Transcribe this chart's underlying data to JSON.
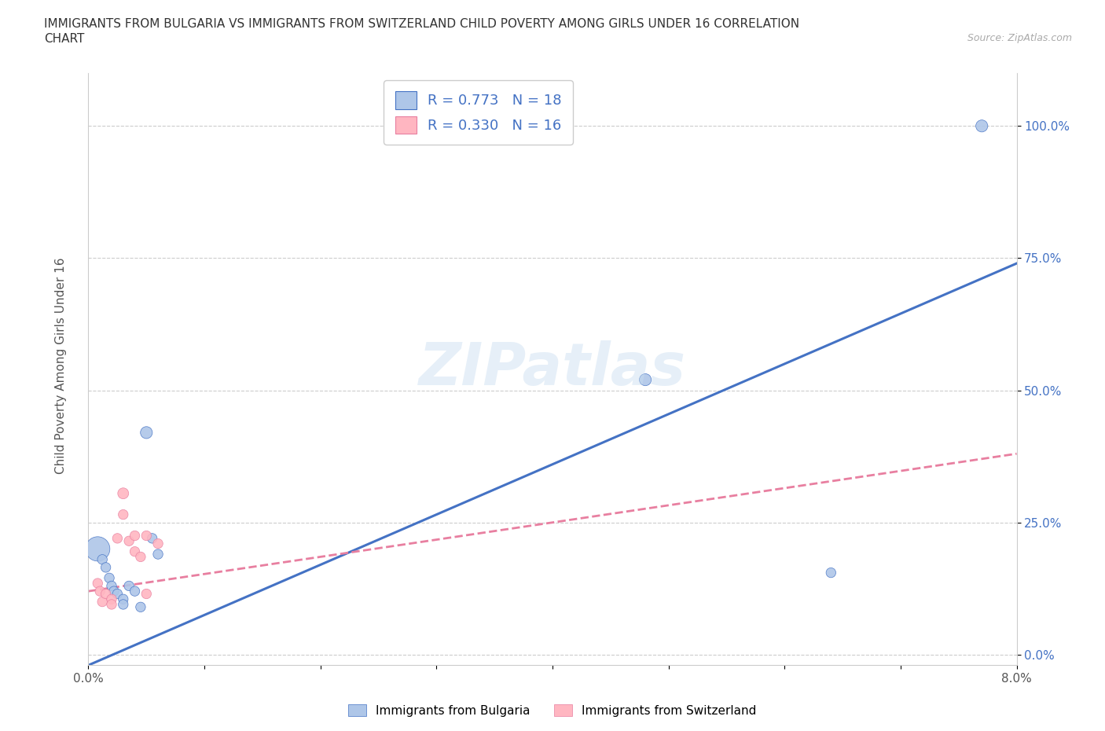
{
  "title_line1": "IMMIGRANTS FROM BULGARIA VS IMMIGRANTS FROM SWITZERLAND CHILD POVERTY AMONG GIRLS UNDER 16 CORRELATION",
  "title_line2": "CHART",
  "source_text": "Source: ZipAtlas.com",
  "ylabel": "Child Poverty Among Girls Under 16",
  "xlim": [
    0.0,
    0.08
  ],
  "ylim": [
    -0.02,
    1.1
  ],
  "yticks": [
    0.0,
    0.25,
    0.5,
    0.75,
    1.0
  ],
  "ytick_labels": [
    "0.0%",
    "25.0%",
    "50.0%",
    "75.0%",
    "100.0%"
  ],
  "xticks": [
    0.0,
    0.01,
    0.02,
    0.03,
    0.04,
    0.05,
    0.06,
    0.07,
    0.08
  ],
  "xtick_labels": [
    "0.0%",
    "",
    "",
    "",
    "",
    "",
    "",
    "",
    "8.0%"
  ],
  "r_bulgaria": 0.773,
  "n_bulgaria": 18,
  "r_switzerland": 0.33,
  "n_switzerland": 16,
  "bulgaria_color": "#aec6e8",
  "switzerland_color": "#ffb6c1",
  "trend_bulgaria_color": "#4472c4",
  "trend_switzerland_color": "#e87fa0",
  "background_color": "#ffffff",
  "watermark": "ZIPatlas",
  "bulgaria_points": [
    [
      0.0008,
      0.2
    ],
    [
      0.0012,
      0.18
    ],
    [
      0.0015,
      0.165
    ],
    [
      0.0018,
      0.145
    ],
    [
      0.002,
      0.13
    ],
    [
      0.0022,
      0.12
    ],
    [
      0.0025,
      0.115
    ],
    [
      0.003,
      0.105
    ],
    [
      0.003,
      0.095
    ],
    [
      0.0035,
      0.13
    ],
    [
      0.004,
      0.12
    ],
    [
      0.0045,
      0.09
    ],
    [
      0.005,
      0.42
    ],
    [
      0.0055,
      0.22
    ],
    [
      0.006,
      0.19
    ],
    [
      0.048,
      0.52
    ],
    [
      0.064,
      0.155
    ],
    [
      0.077,
      1.0
    ]
  ],
  "bulgaria_sizes": [
    500,
    80,
    80,
    80,
    80,
    80,
    80,
    80,
    80,
    80,
    80,
    80,
    120,
    80,
    80,
    120,
    80,
    120
  ],
  "switzerland_points": [
    [
      0.0008,
      0.135
    ],
    [
      0.001,
      0.12
    ],
    [
      0.0012,
      0.1
    ],
    [
      0.0015,
      0.115
    ],
    [
      0.002,
      0.105
    ],
    [
      0.002,
      0.095
    ],
    [
      0.0025,
      0.22
    ],
    [
      0.003,
      0.305
    ],
    [
      0.003,
      0.265
    ],
    [
      0.0035,
      0.215
    ],
    [
      0.004,
      0.225
    ],
    [
      0.004,
      0.195
    ],
    [
      0.0045,
      0.185
    ],
    [
      0.005,
      0.225
    ],
    [
      0.005,
      0.115
    ],
    [
      0.006,
      0.21
    ]
  ],
  "switzerland_sizes": [
    80,
    80,
    80,
    80,
    80,
    80,
    80,
    100,
    80,
    80,
    80,
    80,
    80,
    80,
    80,
    80
  ]
}
